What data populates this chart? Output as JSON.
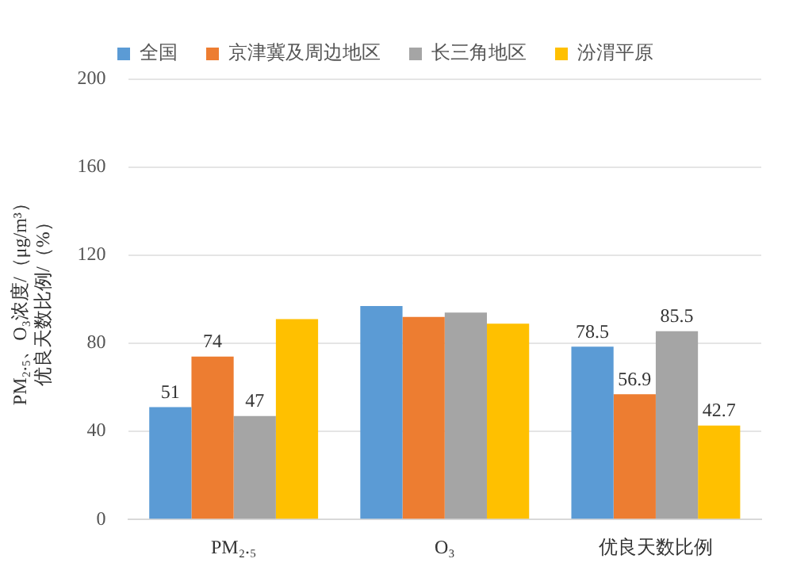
{
  "chart_data": {
    "type": "bar",
    "ylabel": "PM₂.₅、O₃浓度/（μg/m³）优良天数比例/（%）",
    "categories": [
      "PM₂.₅",
      "O₃",
      "优良天数比例"
    ],
    "series": [
      {
        "name": "全国",
        "color": "#5b9bd5",
        "values": [
          51,
          97,
          78.5
        ],
        "value_labels": [
          "51",
          null,
          "78.5"
        ]
      },
      {
        "name": "京津冀及周边地区",
        "color": "#ed7d31",
        "values": [
          74,
          92,
          56.9
        ],
        "value_labels": [
          "74",
          null,
          "56.9"
        ]
      },
      {
        "name": "长三角地区",
        "color": "#a5a5a5",
        "values": [
          47,
          94,
          85.5
        ],
        "value_labels": [
          "47",
          null,
          "85.5"
        ]
      },
      {
        "name": "汾渭平原",
        "color": "#ffc000",
        "values": [
          91,
          89,
          42.7
        ],
        "value_labels": [
          null,
          null,
          "42.7"
        ]
      }
    ],
    "ylim": [
      0,
      200
    ],
    "yticks": [
      0,
      40,
      80,
      120,
      160,
      200
    ],
    "grid": "y",
    "legend": "top"
  }
}
